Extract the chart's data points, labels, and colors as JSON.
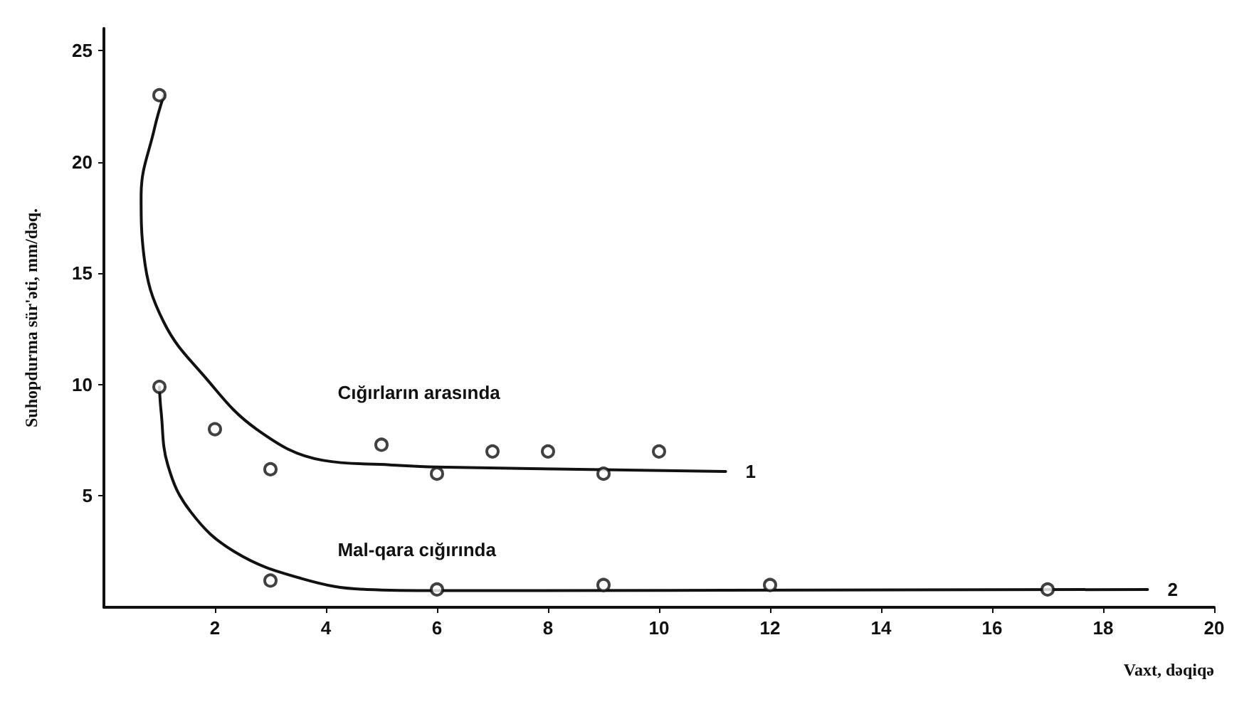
{
  "chart_data": {
    "type": "scatter",
    "xlabel": "Vaxt, dəqiqə",
    "ylabel": "Suhopdurma sür'əti, mm/dəq.",
    "xlim": [
      0,
      20
    ],
    "ylim": [
      0,
      26
    ],
    "xticks": [
      2,
      4,
      6,
      8,
      10,
      12,
      14,
      16,
      18,
      20
    ],
    "yticks": [
      5,
      10,
      15,
      20,
      25
    ],
    "grid": false,
    "marker": "circle",
    "series": [
      {
        "color": "#111111",
        "x": [
          1,
          2,
          3,
          5,
          6,
          7,
          8,
          9,
          10
        ],
        "values": [
          23,
          8,
          6.2,
          7.3,
          6,
          7,
          7,
          6,
          7
        ]
      },
      {
        "color": "#111111",
        "x": [
          1,
          3,
          6,
          9,
          12,
          17
        ],
        "values": [
          9.9,
          1.2,
          0.8,
          1,
          1,
          0.8
        ]
      },
      {
        "type": "line",
        "name": "1",
        "color": "#111111",
        "marker": "none",
        "line_style": "solid",
        "x": [
          1.08,
          0.91,
          0.67,
          0.72,
          1.08,
          1.8,
          2.75,
          3.95,
          5.15,
          6,
          11.2
        ],
        "values": [
          23,
          21.5,
          18.5,
          15.8,
          12.8,
          10.4,
          8,
          6.6,
          6.4,
          6.3,
          6.1
        ]
      },
      {
        "type": "line",
        "name": "2",
        "color": "#111111",
        "marker": "none",
        "line_style": "solid",
        "x": [
          1,
          1.03,
          1.15,
          1.56,
          2.35,
          3.55,
          4.74,
          6,
          18.8
        ],
        "values": [
          9.9,
          8.8,
          6.4,
          4.3,
          2.5,
          1.3,
          0.8,
          0.75,
          0.8
        ]
      }
    ],
    "annotations": [
      "Cığırların arasında",
      "Mal-qara cığırında"
    ]
  }
}
